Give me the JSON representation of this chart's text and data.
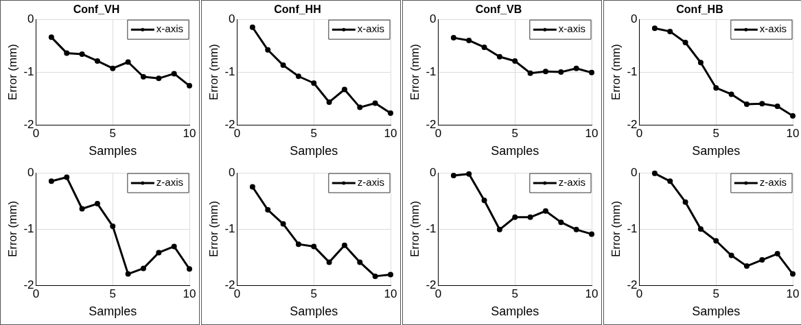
{
  "chart_data": [
    {
      "type": "line",
      "title": "Conf_VH",
      "xlabel": "Samples",
      "ylabel": "Error (mm)",
      "x": [
        1,
        2,
        3,
        4,
        5,
        6,
        7,
        8,
        9,
        10
      ],
      "xlim": [
        0,
        10
      ],
      "xticks": [
        0,
        5,
        10
      ],
      "ylim": [
        -2,
        0
      ],
      "yticks": [
        -2,
        -1,
        0
      ],
      "grid": true,
      "legend": "top right",
      "marker": "circle",
      "line_style": "solid",
      "series": [
        {
          "name": "x-axis",
          "color": "#000000",
          "values": [
            -0.34,
            -0.64,
            -0.66,
            -0.79,
            -0.93,
            -0.81,
            -1.09,
            -1.12,
            -1.03,
            -1.26
          ]
        }
      ]
    },
    {
      "type": "line",
      "title": "Conf_HH",
      "xlabel": "Samples",
      "ylabel": "Error (mm)",
      "x": [
        1,
        2,
        3,
        4,
        5,
        6,
        7,
        8,
        9,
        10
      ],
      "xlim": [
        0,
        10
      ],
      "xticks": [
        0,
        5,
        10
      ],
      "ylim": [
        -2,
        0
      ],
      "yticks": [
        -2,
        -1,
        0
      ],
      "grid": true,
      "legend": "top right",
      "marker": "circle",
      "line_style": "solid",
      "series": [
        {
          "name": "x-axis",
          "color": "#000000",
          "values": [
            -0.15,
            -0.58,
            -0.87,
            -1.08,
            -1.21,
            -1.57,
            -1.33,
            -1.67,
            -1.59,
            -1.78
          ]
        }
      ]
    },
    {
      "type": "line",
      "title": "Conf_VB",
      "xlabel": "Samples",
      "ylabel": "Error (mm)",
      "x": [
        1,
        2,
        3,
        4,
        5,
        6,
        7,
        8,
        9,
        10
      ],
      "xlim": [
        0,
        10
      ],
      "xticks": [
        0,
        5,
        10
      ],
      "ylim": [
        -2,
        0
      ],
      "yticks": [
        -2,
        -1,
        0
      ],
      "grid": true,
      "legend": "top right",
      "marker": "circle",
      "line_style": "solid",
      "series": [
        {
          "name": "x-axis",
          "color": "#000000",
          "values": [
            -0.35,
            -0.4,
            -0.53,
            -0.71,
            -0.79,
            -1.02,
            -0.99,
            -1.0,
            -0.93,
            -1.01
          ]
        }
      ]
    },
    {
      "type": "line",
      "title": "Conf_HB",
      "xlabel": "Samples",
      "ylabel": "Error (mm)",
      "x": [
        1,
        2,
        3,
        4,
        5,
        6,
        7,
        8,
        9,
        10
      ],
      "xlim": [
        0,
        10
      ],
      "xticks": [
        0,
        5,
        10
      ],
      "ylim": [
        -2,
        0
      ],
      "yticks": [
        -2,
        -1,
        0
      ],
      "grid": true,
      "legend": "top right",
      "marker": "circle",
      "line_style": "solid",
      "series": [
        {
          "name": "x-axis",
          "color": "#000000",
          "values": [
            -0.17,
            -0.23,
            -0.44,
            -0.82,
            -1.3,
            -1.42,
            -1.61,
            -1.6,
            -1.65,
            -1.83
          ]
        }
      ]
    },
    {
      "type": "line",
      "xlabel": "Samples",
      "ylabel": "Error (mm)",
      "x": [
        1,
        2,
        3,
        4,
        5,
        6,
        7,
        8,
        9,
        10
      ],
      "xlim": [
        0,
        10
      ],
      "xticks": [
        0,
        5,
        10
      ],
      "ylim": [
        -2,
        0
      ],
      "yticks": [
        -2,
        -1,
        0
      ],
      "grid": true,
      "legend": "top right",
      "marker": "circle",
      "line_style": "solid",
      "series": [
        {
          "name": "z-axis",
          "color": "#000000",
          "values": [
            -0.15,
            -0.08,
            -0.64,
            -0.55,
            -0.95,
            -1.8,
            -1.7,
            -1.42,
            -1.31,
            -1.71
          ]
        }
      ]
    },
    {
      "type": "line",
      "xlabel": "Samples",
      "ylabel": "Error (mm)",
      "x": [
        1,
        2,
        3,
        4,
        5,
        6,
        7,
        8,
        9,
        10
      ],
      "xlim": [
        0,
        10
      ],
      "xticks": [
        0,
        5,
        10
      ],
      "ylim": [
        -2,
        0
      ],
      "yticks": [
        -2,
        -1,
        0
      ],
      "grid": true,
      "legend": "top right",
      "marker": "circle",
      "line_style": "solid",
      "series": [
        {
          "name": "z-axis",
          "color": "#000000",
          "values": [
            -0.25,
            -0.66,
            -0.91,
            -1.27,
            -1.31,
            -1.59,
            -1.29,
            -1.59,
            -1.84,
            -1.81
          ]
        }
      ]
    },
    {
      "type": "line",
      "xlabel": "Samples",
      "ylabel": "Error (mm)",
      "x": [
        1,
        2,
        3,
        4,
        5,
        6,
        7,
        8,
        9,
        10
      ],
      "xlim": [
        0,
        10
      ],
      "xticks": [
        0,
        5,
        10
      ],
      "ylim": [
        -2,
        0
      ],
      "yticks": [
        -2,
        -1,
        0
      ],
      "grid": true,
      "legend": "top right",
      "marker": "circle",
      "line_style": "solid",
      "series": [
        {
          "name": "z-axis",
          "color": "#000000",
          "values": [
            -0.05,
            -0.02,
            -0.49,
            -1.01,
            -0.79,
            -0.79,
            -0.68,
            -0.88,
            -1.01,
            -1.09
          ]
        }
      ]
    },
    {
      "type": "line",
      "xlabel": "Samples",
      "ylabel": "Error (mm)",
      "x": [
        1,
        2,
        3,
        4,
        5,
        6,
        7,
        8,
        9,
        10
      ],
      "xlim": [
        0,
        10
      ],
      "xticks": [
        0,
        5,
        10
      ],
      "ylim": [
        -2,
        0
      ],
      "yticks": [
        -2,
        -1,
        0
      ],
      "grid": true,
      "legend": "top right",
      "marker": "circle",
      "line_style": "solid",
      "series": [
        {
          "name": "z-axis",
          "color": "#000000",
          "values": [
            -0.01,
            -0.15,
            -0.52,
            -1.0,
            -1.21,
            -1.47,
            -1.66,
            -1.55,
            -1.44,
            -1.8
          ]
        }
      ]
    }
  ]
}
